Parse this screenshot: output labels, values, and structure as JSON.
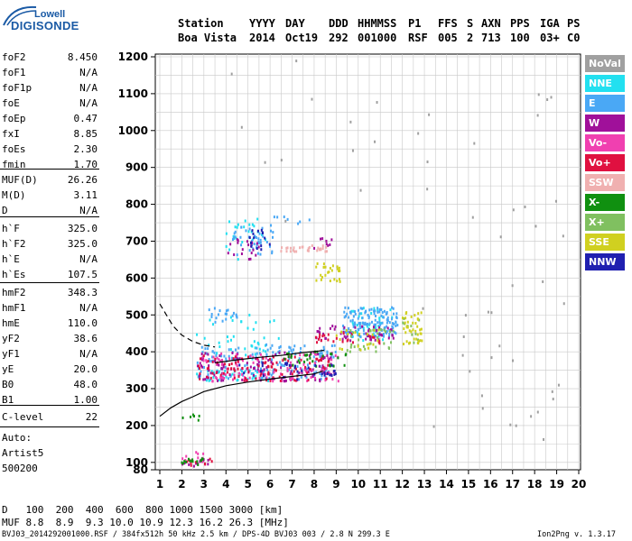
{
  "logo": {
    "line1": "Lowell",
    "line2": "DIGISONDE"
  },
  "header": {
    "labels": [
      "Station",
      "YYYY",
      "DAY",
      "DDD",
      "HHMMSS",
      "P1",
      "FFS",
      "S",
      "AXN",
      "PPS",
      "IGA",
      "PS"
    ],
    "values": [
      "Boa Vista",
      "2014",
      "Oct19",
      "292",
      "001000",
      "RSF",
      "005",
      "2",
      "713",
      "100",
      "03+",
      "C0"
    ]
  },
  "params": {
    "group1": [
      {
        "name": "foF2",
        "value": "8.450"
      },
      {
        "name": "foF1",
        "value": "N/A"
      },
      {
        "name": "foF1p",
        "value": "N/A"
      },
      {
        "name": "foE",
        "value": "N/A"
      },
      {
        "name": "foEp",
        "value": "0.47"
      },
      {
        "name": "fxI",
        "value": "8.85"
      },
      {
        "name": "foEs",
        "value": "2.30"
      },
      {
        "name": "fmin",
        "value": "1.70"
      }
    ],
    "group2": [
      {
        "name": "MUF(D)",
        "value": "26.26"
      },
      {
        "name": "M(D)",
        "value": "3.11"
      },
      {
        "name": "D",
        "value": "N/A"
      }
    ],
    "group3": [
      {
        "name": "h`F",
        "value": "325.0"
      },
      {
        "name": "h`F2",
        "value": "325.0"
      },
      {
        "name": "h`E",
        "value": "N/A"
      },
      {
        "name": "h`Es",
        "value": "107.5"
      }
    ],
    "group4": [
      {
        "name": "hmF2",
        "value": "348.3"
      },
      {
        "name": "hmF1",
        "value": "N/A"
      },
      {
        "name": "hmE",
        "value": "110.0"
      },
      {
        "name": "yF2",
        "value": "38.6"
      },
      {
        "name": "yF1",
        "value": "N/A"
      },
      {
        "name": "yE",
        "value": "20.0"
      },
      {
        "name": "B0",
        "value": "48.0"
      },
      {
        "name": "B1",
        "value": "1.00"
      }
    ],
    "group5": [
      {
        "name": "C-level",
        "value": "22"
      }
    ]
  },
  "auto": {
    "line1": "Auto:",
    "line2": "Artist5",
    "line3": "500200"
  },
  "legend": [
    {
      "label": "NoVal",
      "color": "#a0a0a0"
    },
    {
      "label": "NNE",
      "color": "#22e0f0"
    },
    {
      "label": "E",
      "color": "#4aa8f5"
    },
    {
      "label": "W",
      "color": "#a0109a"
    },
    {
      "label": "Vo-",
      "color": "#f040b0"
    },
    {
      "label": "Vo+",
      "color": "#e01040"
    },
    {
      "label": "SSW",
      "color": "#f0b0b0"
    },
    {
      "label": "X-",
      "color": "#109010"
    },
    {
      "label": "X+",
      "color": "#80c060"
    },
    {
      "label": "SSE",
      "color": "#d0d020"
    },
    {
      "label": "NNW",
      "color": "#2020b0"
    }
  ],
  "footer": {
    "d_label": "D",
    "d_values": "100  200  400  600  800 1000 1500 3000 [km]",
    "muf_label": "MUF",
    "muf_values": "8.8  8.9  9.3 10.0 10.9 12.3 16.2 26.3 [MHz]",
    "file_info": "BVJ03_2014292001000.RSF / 384fx512h 50 kHz 2.5 km / DPS-4D BVJ03 003 / 2.8 N 299.3 E",
    "version": "Ion2Png v. 1.3.17"
  },
  "chart_data": {
    "type": "scatter",
    "title": "",
    "xlabel": "",
    "ylabel": "",
    "xlim": [
      1,
      20
    ],
    "ylim": [
      80,
      1200
    ],
    "x_ticks": [
      1,
      2,
      3,
      4,
      5,
      6,
      7,
      8,
      9,
      10,
      11,
      12,
      13,
      14,
      15,
      16,
      17,
      18,
      19,
      20
    ],
    "y_ticks": [
      80,
      100,
      200,
      300,
      400,
      500,
      600,
      700,
      800,
      900,
      1000,
      1100,
      1200
    ],
    "grid": true,
    "legend_position": "right",
    "series": [
      {
        "name": "NNE",
        "color": "#22e0f0",
        "clusters": [
          {
            "x": [
              2.6,
              6.5
            ],
            "y": [
              380,
              500
            ],
            "count": 40
          },
          {
            "x": [
              4.0,
              5.8
            ],
            "y": [
              650,
              760
            ],
            "count": 25
          },
          {
            "x": [
              9.5,
              11.6
            ],
            "y": [
              430,
              520
            ],
            "count": 40
          },
          {
            "x": [
              2.6,
              6.0
            ],
            "y": [
              320,
              350
            ],
            "count": 40
          }
        ]
      },
      {
        "name": "E",
        "color": "#4aa8f5",
        "clusters": [
          {
            "x": [
              9.3,
              11.8
            ],
            "y": [
              440,
              520
            ],
            "count": 140
          },
          {
            "x": [
              2.7,
              9.0
            ],
            "y": [
              325,
              420
            ],
            "count": 170
          },
          {
            "x": [
              4.3,
              6.2
            ],
            "y": [
              660,
              740
            ],
            "count": 40
          },
          {
            "x": [
              3.2,
              4.6
            ],
            "y": [
              480,
              520
            ],
            "count": 20
          },
          {
            "x": [
              5.8,
              8.0
            ],
            "y": [
              740,
              770
            ],
            "count": 8
          }
        ]
      },
      {
        "name": "W",
        "color": "#a0109a",
        "clusters": [
          {
            "x": [
              2.7,
              9.0
            ],
            "y": [
              320,
              400
            ],
            "count": 120
          },
          {
            "x": [
              7.8,
              11.6
            ],
            "y": [
              430,
              470
            ],
            "count": 50
          },
          {
            "x": [
              4.0,
              5.5
            ],
            "y": [
              650,
              710
            ],
            "count": 20
          },
          {
            "x": [
              2.0,
              3.2
            ],
            "y": [
              88,
              110
            ],
            "count": 15
          },
          {
            "x": [
              8.0,
              9.0
            ],
            "y": [
              680,
              710
            ],
            "count": 8
          }
        ]
      },
      {
        "name": "Vo-",
        "color": "#f040b0",
        "clusters": [
          {
            "x": [
              2.7,
              9.2
            ],
            "y": [
              320,
              395
            ],
            "count": 100
          },
          {
            "x": [
              2.0,
              3.0
            ],
            "y": [
              90,
              130
            ],
            "count": 10
          }
        ]
      },
      {
        "name": "Vo+",
        "color": "#e01040",
        "clusters": [
          {
            "x": [
              2.7,
              8.8
            ],
            "y": [
              320,
              390
            ],
            "count": 100
          },
          {
            "x": [
              8.0,
              11.0
            ],
            "y": [
              420,
              450
            ],
            "count": 25
          },
          {
            "x": [
              2.2,
              3.5
            ],
            "y": [
              85,
              110
            ],
            "count": 10
          }
        ]
      },
      {
        "name": "SSW",
        "color": "#f0b0b0",
        "clusters": [
          {
            "x": [
              6.5,
              8.8
            ],
            "y": [
              670,
              690
            ],
            "count": 30
          }
        ]
      },
      {
        "name": "X-",
        "color": "#109010",
        "clusters": [
          {
            "x": [
              6.5,
              9.5
            ],
            "y": [
              360,
              400
            ],
            "count": 30
          },
          {
            "x": [
              2.0,
              3.2
            ],
            "y": [
              90,
              110
            ],
            "count": 15
          },
          {
            "x": [
              2.0,
              2.8
            ],
            "y": [
              210,
              230
            ],
            "count": 6
          }
        ]
      },
      {
        "name": "X+",
        "color": "#80c060",
        "clusters": [
          {
            "x": [
              9.5,
              11.8
            ],
            "y": [
              400,
              460
            ],
            "count": 30
          },
          {
            "x": [
              12.0,
              12.8
            ],
            "y": [
              420,
              500
            ],
            "count": 10
          }
        ]
      },
      {
        "name": "SSE",
        "color": "#d0d020",
        "clusters": [
          {
            "x": [
              12.0,
              12.9
            ],
            "y": [
              420,
              510
            ],
            "count": 40
          },
          {
            "x": [
              8.0,
              9.2
            ],
            "y": [
              590,
              640
            ],
            "count": 25
          },
          {
            "x": [
              9.0,
              11.0
            ],
            "y": [
              400,
              460
            ],
            "count": 20
          }
        ]
      },
      {
        "name": "NNW",
        "color": "#2020b0",
        "clusters": [
          {
            "x": [
              5.0,
              6.2
            ],
            "y": [
              660,
              730
            ],
            "count": 15
          },
          {
            "x": [
              4.5,
              9.0
            ],
            "y": [
              325,
              370
            ],
            "count": 30
          }
        ]
      },
      {
        "name": "NoVal",
        "color": "#a0a0a0",
        "clusters": [
          {
            "x": [
              12.5,
              19.5
            ],
            "y": [
              100,
              1200
            ],
            "count": 40
          },
          {
            "x": [
              4.0,
              11.0
            ],
            "y": [
              700,
              1200
            ],
            "count": 12
          }
        ]
      }
    ],
    "lines": [
      {
        "style": "solid",
        "x": [
          1.0,
          1.5,
          2.0,
          2.5,
          3.0,
          4.0,
          5.0,
          6.0,
          7.0,
          8.0,
          8.4
        ],
        "y": [
          225,
          248,
          265,
          278,
          292,
          308,
          318,
          326,
          333,
          340,
          348
        ]
      },
      {
        "style": "dashed",
        "x": [
          1.0,
          1.3,
          1.6,
          2.0,
          2.5,
          3.0,
          3.5
        ],
        "y": [
          530,
          500,
          470,
          445,
          428,
          418,
          413
        ]
      },
      {
        "style": "solid",
        "x": [
          3.5,
          4.5,
          5.5,
          6.5,
          7.5,
          8.2,
          8.45
        ],
        "y": [
          370,
          378,
          385,
          390,
          398,
          402,
          404
        ]
      }
    ]
  }
}
